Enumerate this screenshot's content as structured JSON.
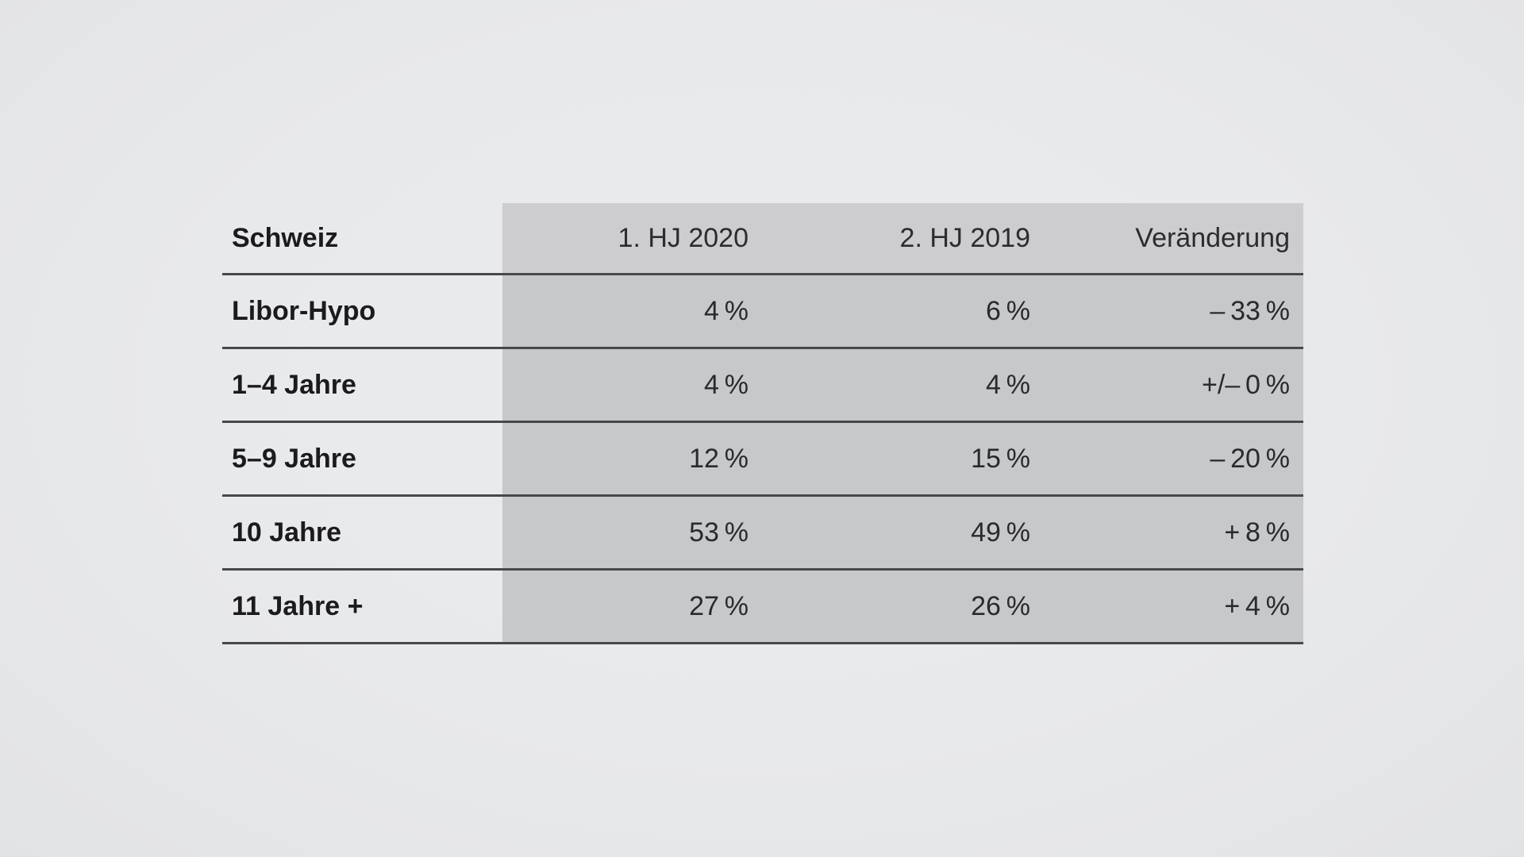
{
  "colors": {
    "page_background": "#e8e9eb",
    "value_columns_shade": "#c7c8ca",
    "header_shade": "#cdcdcf",
    "rule_line": "#47484a",
    "label_text": "#1b1b1d",
    "value_text": "#2a2a2c"
  },
  "table": {
    "title": "Schweiz",
    "column_headers": [
      "1. HJ 2020",
      "2. HJ 2019",
      "Veränderung"
    ],
    "rows": [
      {
        "label": "Libor-Hypo",
        "hj2020": "4 %",
        "hj2019": "6 %",
        "change": "– 33 %"
      },
      {
        "label": "1–4 Jahre",
        "hj2020": "4 %",
        "hj2019": "4 %",
        "change": "+/– 0 %"
      },
      {
        "label": "5–9 Jahre",
        "hj2020": "12 %",
        "hj2019": "15 %",
        "change": "– 20 %"
      },
      {
        "label": "10 Jahre",
        "hj2020": "53 %",
        "hj2019": "49 %",
        "change": "+ 8 %"
      },
      {
        "label": "11 Jahre +",
        "hj2020": "27 %",
        "hj2019": "26 %",
        "change": "+ 4 %"
      }
    ]
  },
  "chart_data": {
    "type": "table",
    "title": "Schweiz",
    "columns": [
      "Schweiz",
      "1. HJ 2020",
      "2. HJ 2019",
      "Veränderung"
    ],
    "rows": [
      [
        "Libor-Hypo",
        "4 %",
        "6 %",
        "–33 %"
      ],
      [
        "1–4 Jahre",
        "4 %",
        "4 %",
        "+/–0 %"
      ],
      [
        "5–9 Jahre",
        "12 %",
        "15 %",
        "–20 %"
      ],
      [
        "10 Jahre",
        "53 %",
        "49 %",
        "+8 %"
      ],
      [
        "11 Jahre +",
        "27 %",
        "26 %",
        "+4 %"
      ]
    ],
    "series": [
      {
        "name": "1. HJ 2020",
        "values": [
          4,
          4,
          12,
          53,
          27
        ],
        "unit": "%"
      },
      {
        "name": "2. HJ 2019",
        "values": [
          6,
          4,
          15,
          49,
          26
        ],
        "unit": "%"
      },
      {
        "name": "Veränderung",
        "values": [
          -33,
          0,
          -20,
          8,
          4
        ],
        "unit": "%"
      }
    ],
    "categories": [
      "Libor-Hypo",
      "1–4 Jahre",
      "5–9 Jahre",
      "10 Jahre",
      "11 Jahre +"
    ]
  }
}
